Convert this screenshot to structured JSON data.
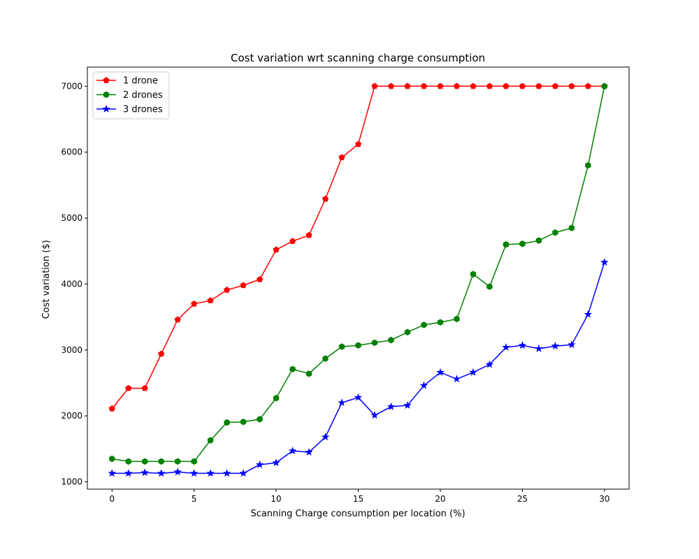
{
  "chart_data": {
    "type": "line",
    "title": "Cost variation wrt scanning charge consumption",
    "xlabel": "Scanning Charge consumption per location (%)",
    "ylabel": "Cost variation ($)",
    "xlim": [
      -1.5,
      31.5
    ],
    "ylim": [
      890,
      7290
    ],
    "xticks": [
      0,
      5,
      10,
      15,
      20,
      25,
      30
    ],
    "yticks": [
      1000,
      2000,
      3000,
      4000,
      5000,
      6000,
      7000
    ],
    "grid": false,
    "legend_position": "top-left",
    "x": [
      0,
      1,
      2,
      3,
      4,
      5,
      6,
      7,
      8,
      9,
      10,
      11,
      12,
      13,
      14,
      15,
      16,
      17,
      18,
      19,
      20,
      21,
      22,
      23,
      24,
      25,
      26,
      27,
      28,
      29,
      30
    ],
    "series": [
      {
        "name": "1 drone",
        "color": "#ff0000",
        "marker": "pentagon",
        "values": [
          2110,
          2420,
          2420,
          2940,
          3460,
          3700,
          3750,
          3910,
          3980,
          4070,
          4520,
          4650,
          4740,
          5290,
          5920,
          6120,
          7000,
          7000,
          7000,
          7000,
          7000,
          7000,
          7000,
          7000,
          7000,
          7000,
          7000,
          7000,
          7000,
          7000,
          7000
        ]
      },
      {
        "name": "2 drones",
        "color": "#008000",
        "marker": "hexagon",
        "values": [
          1350,
          1310,
          1310,
          1310,
          1310,
          1310,
          1630,
          1900,
          1910,
          1950,
          2270,
          2710,
          2640,
          2870,
          3050,
          3070,
          3110,
          3150,
          3270,
          3380,
          3420,
          3470,
          4150,
          3960,
          4600,
          4610,
          4660,
          4780,
          4850,
          5800,
          7000
        ]
      },
      {
        "name": "3 drones",
        "color": "#0000ff",
        "marker": "star",
        "values": [
          1130,
          1130,
          1140,
          1130,
          1150,
          1130,
          1130,
          1130,
          1130,
          1260,
          1290,
          1470,
          1450,
          1680,
          2200,
          2280,
          2010,
          2140,
          2160,
          2460,
          2660,
          2560,
          2660,
          2780,
          3040,
          3070,
          3020,
          3060,
          3080,
          3540,
          4330
        ]
      }
    ]
  }
}
